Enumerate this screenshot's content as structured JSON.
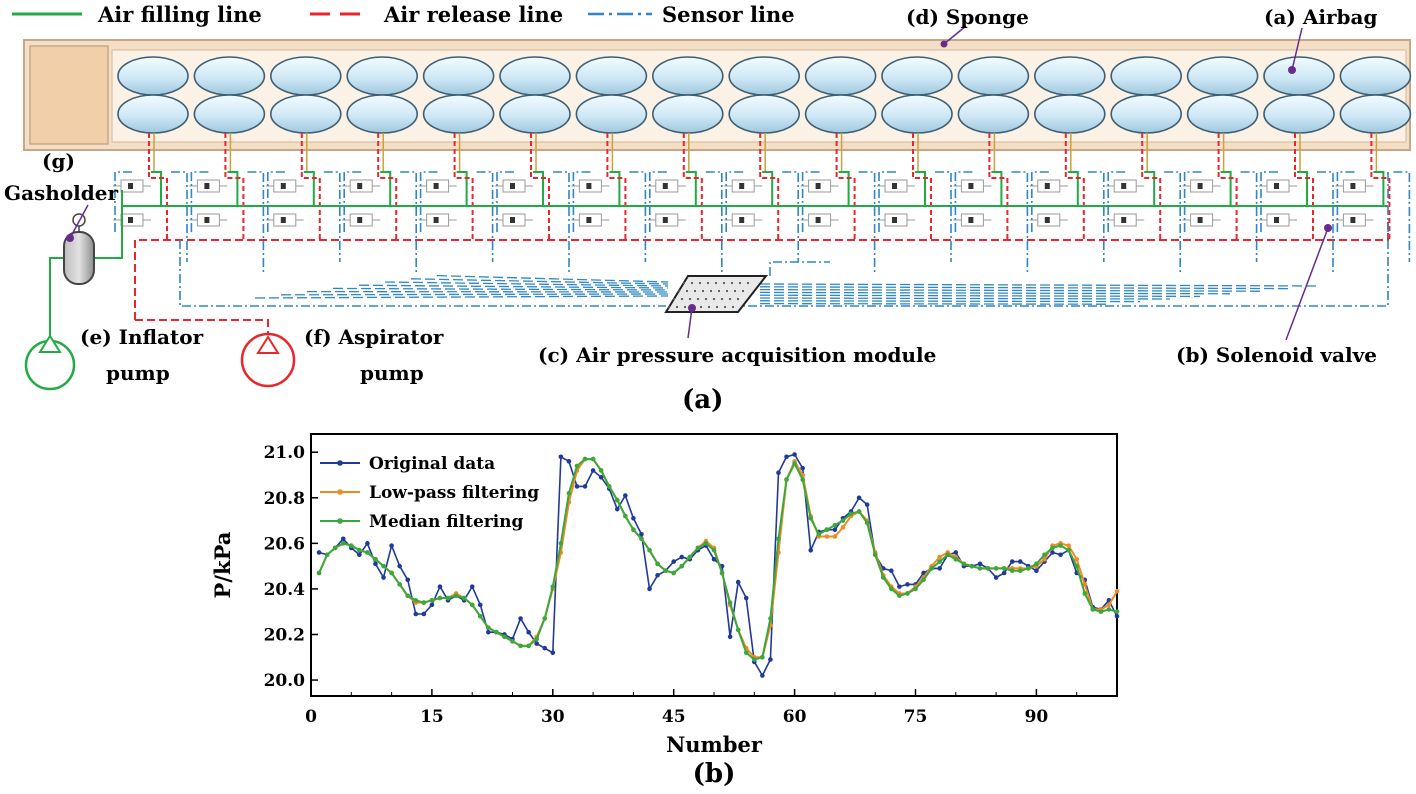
{
  "diagram": {
    "legend": {
      "fill_line": "Air  filling line",
      "release_line": "Air release line",
      "sensor_line": "Sensor line"
    },
    "labels": {
      "sponge": "(d) Sponge",
      "airbag": "(a) Airbag",
      "gasholder_tag": "(g)",
      "gasholder": "Gasholder",
      "inflator_1": "(e) Inflator",
      "inflator_2": "pump",
      "aspirator_1": "(f) Aspirator",
      "aspirator_2": "pump",
      "module": "(c) Air pressure  acquisition module",
      "valve": "(b) Solenoid valve"
    },
    "caption_a": "(a)",
    "colors": {
      "fill": "#22aa44",
      "release": "#e8262b",
      "sensor": "#2f86c8",
      "pointer": "#6a2c8c",
      "airbag": "#cfe8f6",
      "sponge": "#f4dfc6"
    }
  },
  "caption_b": "(b)",
  "chart_data": {
    "type": "line",
    "xlabel": "Number",
    "ylabel": "P/kPa",
    "xlim": [
      0,
      100
    ],
    "ylim": [
      19.93,
      21.08
    ],
    "xticks": [
      "0",
      "15",
      "30",
      "45",
      "60",
      "75",
      "90"
    ],
    "yticks": [
      "20.0",
      "20.2",
      "20.4",
      "20.6",
      "20.8",
      "21.0"
    ],
    "series": [
      {
        "name": "Original data",
        "color": "#1f3a9a",
        "x": [
          1,
          2,
          3,
          4,
          5,
          6,
          7,
          8,
          9,
          10,
          11,
          12,
          13,
          14,
          15,
          16,
          17,
          18,
          19,
          20,
          21,
          22,
          23,
          24,
          25,
          26,
          27,
          28,
          29,
          30,
          31,
          32,
          33,
          34,
          35,
          36,
          37,
          38,
          39,
          40,
          41,
          42,
          43,
          44,
          45,
          46,
          47,
          48,
          49,
          50,
          51,
          52,
          53,
          54,
          55,
          56,
          57,
          58,
          59,
          60,
          61,
          62,
          63,
          64,
          65,
          66,
          67,
          68,
          69,
          70,
          71,
          72,
          73,
          74,
          75,
          76,
          77,
          78,
          79,
          80,
          81,
          82,
          83,
          84,
          85,
          86,
          87,
          88,
          89,
          90,
          91,
          92,
          93,
          94,
          95,
          96,
          97,
          98,
          99,
          100
        ],
        "values": [
          20.56,
          20.55,
          20.58,
          20.62,
          20.58,
          20.55,
          20.6,
          20.51,
          20.45,
          20.59,
          20.5,
          20.44,
          20.29,
          20.29,
          20.33,
          20.41,
          20.35,
          20.37,
          20.35,
          20.41,
          20.33,
          20.21,
          20.21,
          20.2,
          20.18,
          20.27,
          20.21,
          20.16,
          20.14,
          20.12,
          20.98,
          20.96,
          20.85,
          20.85,
          20.92,
          20.89,
          20.84,
          20.75,
          20.81,
          20.71,
          20.64,
          20.4,
          20.46,
          20.48,
          20.52,
          20.54,
          20.53,
          20.57,
          20.59,
          20.53,
          20.5,
          20.19,
          20.43,
          20.36,
          20.08,
          20.02,
          20.09,
          20.91,
          20.98,
          20.99,
          20.93,
          20.57,
          20.65,
          20.66,
          20.66,
          20.71,
          20.74,
          20.8,
          20.77,
          20.55,
          20.49,
          20.48,
          20.41,
          20.42,
          20.42,
          20.47,
          20.49,
          20.49,
          20.55,
          20.56,
          20.5,
          20.5,
          20.51,
          20.49,
          20.45,
          20.47,
          20.52,
          20.52,
          20.5,
          20.48,
          20.52,
          20.56,
          20.55,
          20.57,
          20.47,
          20.44,
          20.32,
          20.31,
          20.35,
          20.28
        ]
      },
      {
        "name": "Low-pass filtering",
        "color": "#f08a24",
        "x": [
          1,
          2,
          3,
          4,
          5,
          6,
          7,
          8,
          9,
          10,
          11,
          12,
          13,
          14,
          15,
          16,
          17,
          18,
          19,
          20,
          21,
          22,
          23,
          24,
          25,
          26,
          27,
          28,
          29,
          30,
          31,
          32,
          33,
          34,
          35,
          36,
          37,
          38,
          39,
          40,
          41,
          42,
          43,
          44,
          45,
          46,
          47,
          48,
          49,
          50,
          51,
          52,
          53,
          54,
          55,
          56,
          57,
          58,
          59,
          60,
          61,
          62,
          63,
          64,
          65,
          66,
          67,
          68,
          69,
          70,
          71,
          72,
          73,
          74,
          75,
          76,
          77,
          78,
          79,
          80,
          81,
          82,
          83,
          84,
          85,
          86,
          87,
          88,
          89,
          90,
          91,
          92,
          93,
          94,
          95,
          96,
          97,
          98,
          99,
          100
        ],
        "values": [
          20.47,
          20.55,
          20.58,
          20.6,
          20.59,
          20.57,
          20.56,
          20.53,
          20.5,
          20.47,
          20.42,
          20.37,
          20.34,
          20.34,
          20.35,
          20.36,
          20.36,
          20.38,
          20.36,
          20.33,
          20.28,
          20.23,
          20.21,
          20.19,
          20.17,
          20.15,
          20.15,
          20.19,
          20.27,
          20.4,
          20.56,
          20.78,
          20.92,
          20.97,
          20.97,
          20.92,
          20.85,
          20.79,
          20.72,
          20.66,
          20.62,
          20.57,
          20.51,
          20.48,
          20.47,
          20.5,
          20.54,
          20.58,
          20.61,
          20.58,
          20.47,
          20.33,
          20.22,
          20.14,
          20.1,
          20.1,
          20.24,
          20.56,
          20.88,
          20.96,
          20.9,
          20.72,
          20.63,
          20.63,
          20.63,
          20.67,
          20.72,
          20.74,
          20.7,
          20.56,
          20.46,
          20.41,
          20.38,
          20.38,
          20.41,
          20.45,
          20.5,
          20.54,
          20.56,
          20.54,
          20.51,
          20.5,
          20.49,
          20.49,
          20.49,
          20.49,
          20.49,
          20.49,
          20.49,
          20.5,
          20.53,
          20.59,
          20.6,
          20.59,
          20.53,
          20.42,
          20.31,
          20.31,
          20.33,
          20.39
        ]
      },
      {
        "name": "Median filtering",
        "color": "#3aa83a",
        "x": [
          1,
          2,
          3,
          4,
          5,
          6,
          7,
          8,
          9,
          10,
          11,
          12,
          13,
          14,
          15,
          16,
          17,
          18,
          19,
          20,
          21,
          22,
          23,
          24,
          25,
          26,
          27,
          28,
          29,
          30,
          31,
          32,
          33,
          34,
          35,
          36,
          37,
          38,
          39,
          40,
          41,
          42,
          43,
          44,
          45,
          46,
          47,
          48,
          49,
          50,
          51,
          52,
          53,
          54,
          55,
          56,
          57,
          58,
          59,
          60,
          61,
          62,
          63,
          64,
          65,
          66,
          67,
          68,
          69,
          70,
          71,
          72,
          73,
          74,
          75,
          76,
          77,
          78,
          79,
          80,
          81,
          82,
          83,
          84,
          85,
          86,
          87,
          88,
          89,
          90,
          91,
          92,
          93,
          94,
          95,
          96,
          97,
          98,
          99,
          100
        ],
        "values": [
          20.47,
          20.55,
          20.58,
          20.6,
          20.59,
          20.57,
          20.56,
          20.53,
          20.5,
          20.47,
          20.42,
          20.37,
          20.35,
          20.34,
          20.35,
          20.36,
          20.36,
          20.37,
          20.36,
          20.33,
          20.28,
          20.23,
          20.21,
          20.19,
          20.17,
          20.15,
          20.15,
          20.18,
          20.27,
          20.41,
          20.6,
          20.82,
          20.94,
          20.97,
          20.97,
          20.92,
          20.85,
          20.79,
          20.72,
          20.66,
          20.62,
          20.57,
          20.51,
          20.48,
          20.47,
          20.5,
          20.54,
          20.58,
          20.6,
          20.57,
          20.47,
          20.34,
          20.22,
          20.12,
          20.09,
          20.1,
          20.27,
          20.62,
          20.88,
          20.95,
          20.88,
          20.71,
          20.64,
          20.66,
          20.68,
          20.7,
          20.73,
          20.74,
          20.69,
          20.55,
          20.45,
          20.4,
          20.37,
          20.38,
          20.4,
          20.44,
          20.49,
          20.52,
          20.55,
          20.53,
          20.51,
          20.5,
          20.49,
          20.49,
          20.49,
          20.49,
          20.48,
          20.48,
          20.49,
          20.51,
          20.55,
          20.58,
          20.59,
          20.57,
          20.5,
          20.38,
          20.31,
          20.3,
          20.31,
          20.3
        ]
      }
    ]
  }
}
